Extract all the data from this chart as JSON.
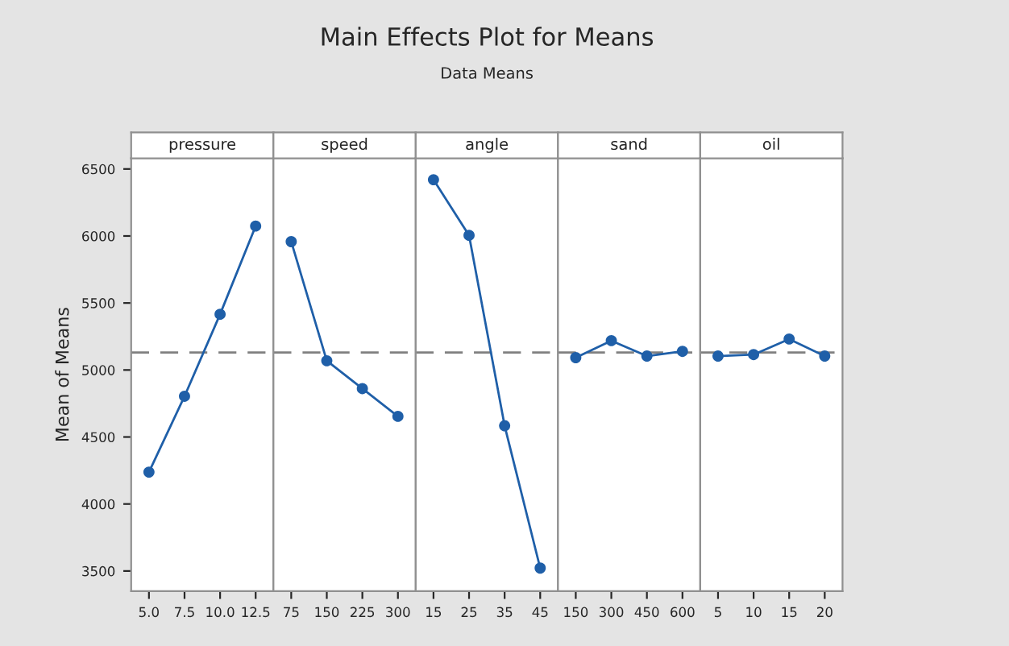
{
  "chart_data": [
    {
      "type": "other",
      "title": "Main Effects Plot for Means",
      "subtitle": "Data Means"
    },
    {
      "type": "line",
      "title": "pressure",
      "ylabel": "Mean of Means",
      "categories": [
        "5.0",
        "7.5",
        "10.0",
        "12.5"
      ],
      "series": [
        {
          "color": "#1f5fa8",
          "values": [
            4238,
            4804,
            5416,
            6074
          ]
        }
      ],
      "ylim": [
        3350,
        6580
      ],
      "yticks": [
        3500,
        4000,
        4500,
        5000,
        5500,
        6000,
        6500
      ],
      "ref_lines": [
        {
          "axis": "y",
          "value": 5130,
          "color": "#808080",
          "line_style": "dashed"
        }
      ],
      "marker": "circle",
      "grid": false
    },
    {
      "type": "line",
      "title": "speed",
      "categories": [
        "75",
        "150",
        "225",
        "300"
      ],
      "series": [
        {
          "color": "#1f5fa8",
          "values": [
            5958,
            5069,
            4861,
            4654
          ]
        }
      ],
      "ylim": [
        3350,
        6580
      ],
      "yticks": [
        3500,
        4000,
        4500,
        5000,
        5500,
        6000,
        6500
      ],
      "tick_labels": "x",
      "ref_lines": [
        {
          "axis": "y",
          "value": 5130,
          "color": "#808080",
          "line_style": "dashed"
        }
      ],
      "marker": "circle",
      "grid": false
    },
    {
      "type": "line",
      "title": "angle",
      "categories": [
        "15",
        "25",
        "35",
        "45"
      ],
      "series": [
        {
          "color": "#1f5fa8",
          "values": [
            6420,
            6005,
            4584,
            3522
          ]
        }
      ],
      "ylim": [
        3350,
        6580
      ],
      "yticks": [
        3500,
        4000,
        4500,
        5000,
        5500,
        6000,
        6500
      ],
      "tick_labels": "x",
      "ref_lines": [
        {
          "axis": "y",
          "value": 5130,
          "color": "#808080",
          "line_style": "dashed"
        }
      ],
      "marker": "circle",
      "grid": false
    },
    {
      "type": "line",
      "title": "sand",
      "categories": [
        "150",
        "300",
        "450",
        "600"
      ],
      "series": [
        {
          "color": "#1f5fa8",
          "values": [
            5092,
            5219,
            5104,
            5139
          ]
        }
      ],
      "ylim": [
        3350,
        6580
      ],
      "yticks": [
        3500,
        4000,
        4500,
        5000,
        5500,
        6000,
        6500
      ],
      "tick_labels": "x",
      "ref_lines": [
        {
          "axis": "y",
          "value": 5130,
          "color": "#808080",
          "line_style": "dashed"
        }
      ],
      "marker": "circle",
      "grid": false
    },
    {
      "type": "line",
      "title": "oil",
      "categories": [
        "5",
        "10",
        "15",
        "20"
      ],
      "series": [
        {
          "color": "#1f5fa8",
          "values": [
            5104,
            5115,
            5231,
            5104
          ]
        }
      ],
      "ylim": [
        3350,
        6580
      ],
      "yticks": [
        3500,
        4000,
        4500,
        5000,
        5500,
        6000,
        6500
      ],
      "tick_labels": "x",
      "ref_lines": [
        {
          "axis": "y",
          "value": 5130,
          "color": "#808080",
          "line_style": "dashed"
        }
      ],
      "marker": "circle",
      "grid": false
    }
  ]
}
